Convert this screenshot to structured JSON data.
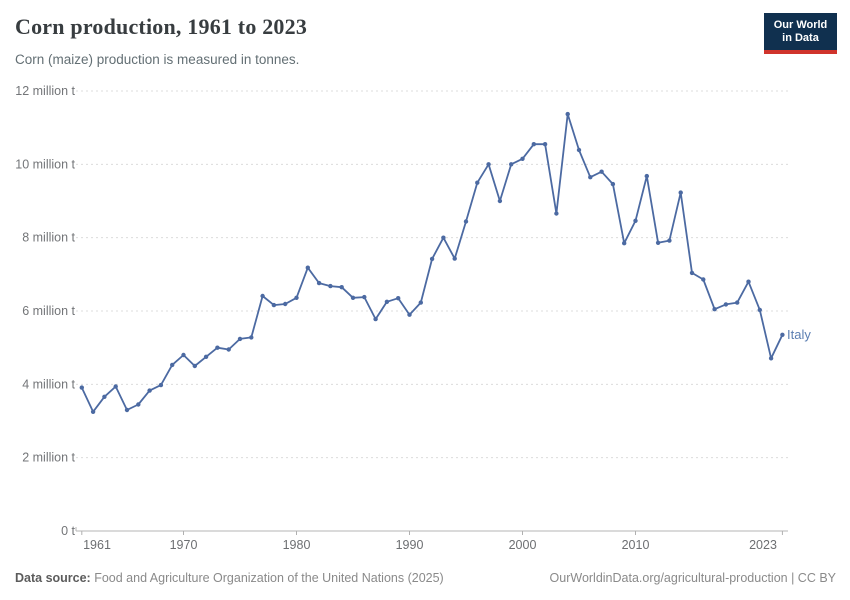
{
  "header": {
    "title": "Corn production, 1961 to 2023",
    "subtitle": "Corn (maize) production is measured in tonnes."
  },
  "logo": {
    "line1": "Our World",
    "line2": "in Data",
    "bg_color": "#10304f",
    "bar_color": "#d0342c"
  },
  "chart_data": {
    "type": "line",
    "title": "Corn production, 1961 to 2023",
    "unit": "million tonnes",
    "grid": true,
    "legend_position": "end-of-line-label",
    "x": [
      1961,
      1962,
      1963,
      1964,
      1965,
      1966,
      1967,
      1968,
      1969,
      1970,
      1971,
      1972,
      1973,
      1974,
      1975,
      1976,
      1977,
      1978,
      1979,
      1980,
      1981,
      1982,
      1983,
      1984,
      1985,
      1986,
      1987,
      1988,
      1989,
      1990,
      1991,
      1992,
      1993,
      1994,
      1995,
      1996,
      1997,
      1998,
      1999,
      2000,
      2001,
      2002,
      2003,
      2004,
      2005,
      2006,
      2007,
      2008,
      2009,
      2010,
      2011,
      2012,
      2013,
      2014,
      2015,
      2016,
      2017,
      2018,
      2019,
      2020,
      2021,
      2022,
      2023
    ],
    "series": [
      {
        "name": "Italy",
        "color": "#4c6aa2",
        "values": [
          3.91,
          3.25,
          3.66,
          3.94,
          3.3,
          3.45,
          3.83,
          3.98,
          4.53,
          4.8,
          4.5,
          4.75,
          5.0,
          4.95,
          5.24,
          5.28,
          6.41,
          6.16,
          6.19,
          6.36,
          7.18,
          6.76,
          6.68,
          6.65,
          6.36,
          6.38,
          5.78,
          6.25,
          6.35,
          5.9,
          6.23,
          7.42,
          8.0,
          7.43,
          8.44,
          9.5,
          10.0,
          9.0,
          10.0,
          10.15,
          10.55,
          10.55,
          8.66,
          11.37,
          10.39,
          9.65,
          9.8,
          9.46,
          7.85,
          8.46,
          9.68,
          7.86,
          7.92,
          9.23,
          7.04,
          6.86,
          6.05,
          6.18,
          6.23,
          6.8,
          6.03,
          4.71,
          5.35
        ]
      }
    ],
    "ylim": [
      0,
      12
    ],
    "yticks": [
      {
        "value": 0,
        "label": "0 t"
      },
      {
        "value": 2,
        "label": "2 million t"
      },
      {
        "value": 4,
        "label": "4 million t"
      },
      {
        "value": 6,
        "label": "6 million t"
      },
      {
        "value": 8,
        "label": "8 million t"
      },
      {
        "value": 10,
        "label": "10 million t"
      },
      {
        "value": 12,
        "label": "12 million t"
      }
    ],
    "xticks": [
      1961,
      1970,
      1980,
      1990,
      2000,
      2010,
      2023
    ],
    "end_label": "Italy",
    "end_label_color": "#5c7fb2"
  },
  "footer": {
    "source_label": "Data source:",
    "source_text": " Food and Agriculture Organization of the United Nations (2025)",
    "credit": "OurWorldinData.org/agricultural-production | CC BY"
  }
}
